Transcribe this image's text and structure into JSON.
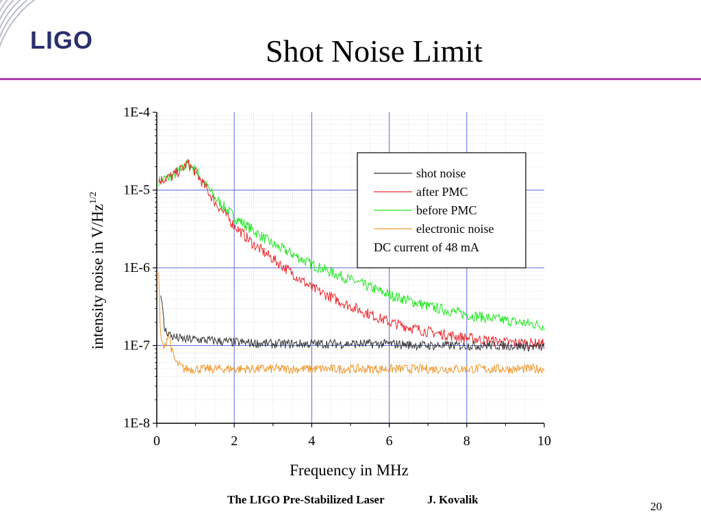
{
  "slide": {
    "title": "Shot Noise Limit",
    "logo": "LIGO",
    "footer": "The LIGO Pre-Stabilized Laser",
    "author": "J. Kovalik",
    "page_number": "20"
  },
  "colors": {
    "accent_rule": "#b13cae",
    "logo": "#2a2f6e",
    "shot_noise": "#333333",
    "after_pmc": "#e8262c",
    "before_pmc": "#1ee61e",
    "electronic_noise": "#f0962a",
    "major_grid": "#5a6ad8",
    "minor_grid": "#c8c8c8"
  },
  "chart_data": {
    "type": "line",
    "title": "",
    "xlabel": "Frequency in MHz",
    "ylabel": "intensity  noise in V/Hz",
    "ylabel_superscript": "1/2",
    "xlim": [
      0,
      10
    ],
    "ylim": [
      1e-08,
      0.0001
    ],
    "yscale": "log",
    "x_ticks": [
      "0",
      "2",
      "4",
      "6",
      "8",
      "10"
    ],
    "y_ticks": [
      "1E-8",
      "1E-7",
      "1E-6",
      "1E-5",
      "1E-4"
    ],
    "grid": true,
    "legend_position": "top-right",
    "legend_note": "DC current of 48 mA",
    "series": [
      {
        "name": "shot noise",
        "x": [
          0.1,
          0.2,
          0.4,
          0.7,
          1,
          1.5,
          2,
          3,
          4,
          5,
          6,
          7,
          8,
          9,
          10
        ],
        "values": [
          5e-07,
          1.6e-07,
          1.3e-07,
          1.2e-07,
          1.2e-07,
          1.15e-07,
          1.1e-07,
          1.05e-07,
          1.05e-07,
          1.05e-07,
          1.05e-07,
          1e-07,
          1e-07,
          1e-07,
          9.5e-08
        ]
      },
      {
        "name": "after PMC",
        "x": [
          0.05,
          0.2,
          0.4,
          0.6,
          0.8,
          1,
          1.2,
          1.5,
          2,
          2.5,
          3,
          3.5,
          4,
          5,
          6,
          7,
          8,
          9,
          10
        ],
        "values": [
          1.3e-05,
          1.4e-05,
          1.5e-05,
          1.8e-05,
          2.2e-05,
          1.7e-05,
          1.2e-05,
          7e-06,
          3.5e-06,
          2e-06,
          1.3e-06,
          8.5e-07,
          5.5e-07,
          3.2e-07,
          2e-07,
          1.5e-07,
          1.25e-07,
          1.1e-07,
          1.05e-07
        ]
      },
      {
        "name": "before PMC",
        "x": [
          0.05,
          0.2,
          0.4,
          0.6,
          0.8,
          1,
          1.2,
          1.5,
          2,
          2.5,
          3,
          3.5,
          4,
          5,
          6,
          7,
          8,
          9,
          10
        ],
        "values": [
          1.3e-05,
          1.4e-05,
          1.5e-05,
          1.8e-05,
          2.2e-05,
          1.8e-05,
          1.3e-05,
          8e-06,
          4.5e-06,
          3e-06,
          2e-06,
          1.5e-06,
          1.1e-06,
          7e-07,
          4.5e-07,
          3.2e-07,
          2.5e-07,
          2.1e-07,
          1.8e-07
        ]
      },
      {
        "name": "electronic noise",
        "x": [
          0.05,
          0.1,
          0.2,
          0.3,
          0.4,
          0.5,
          0.7,
          1,
          2,
          3,
          4,
          5,
          6,
          7,
          8,
          9,
          10
        ],
        "values": [
          8e-07,
          1.2e-07,
          9e-08,
          1.5e-07,
          8e-08,
          6e-08,
          5e-08,
          5e-08,
          5e-08,
          5e-08,
          5e-08,
          5e-08,
          5e-08,
          5e-08,
          5e-08,
          5e-08,
          5e-08
        ]
      }
    ]
  }
}
